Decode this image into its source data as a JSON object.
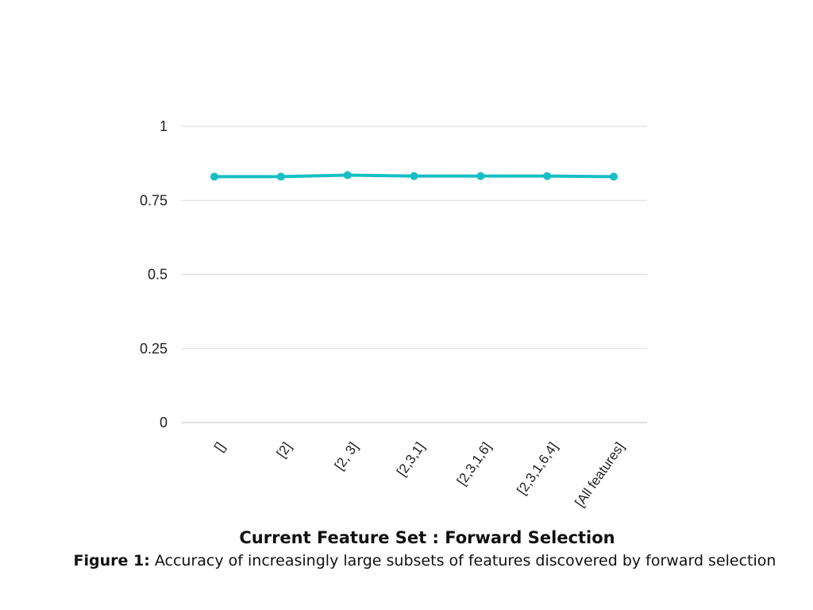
{
  "chart_data": {
    "type": "line",
    "categories": [
      "[]",
      "[2]",
      "[2, 3]",
      "[2,3,1]",
      "[2,3,1,6]",
      "[2,3,1,6,4]",
      "[All features]"
    ],
    "series": [
      {
        "values": [
          0.83,
          0.83,
          0.835,
          0.832,
          0.832,
          0.832,
          0.83
        ]
      }
    ],
    "xlabel": "Current Feature Set : Forward Selection",
    "ylabel": "",
    "ylim": [
      0,
      1
    ],
    "yticks": [
      "0",
      "0.25",
      "0.5",
      "0.75",
      "1"
    ],
    "grid": true,
    "colors": {
      "line": "#17bfc4",
      "grid": "#d9d9d9",
      "axis": "#bfbfbf"
    }
  },
  "caption": {
    "label": "Figure 1:",
    "text": "Accuracy of increasingly large subsets of features discovered by forward selection"
  }
}
